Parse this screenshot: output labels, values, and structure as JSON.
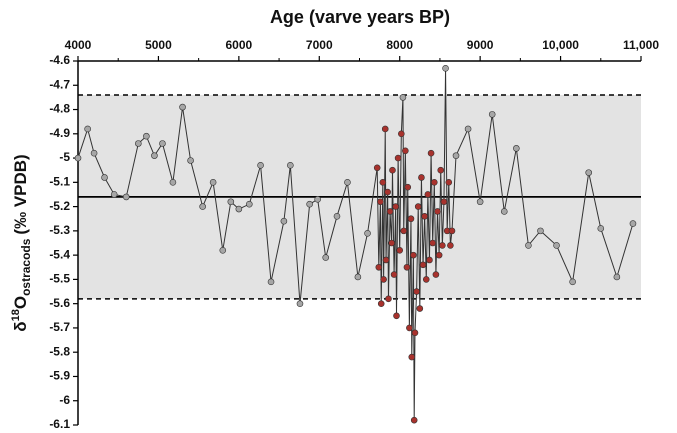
{
  "chart_data": {
    "type": "line",
    "xlabel": "Age (varve years BP)",
    "ylabel_prefix": "δ",
    "ylabel_sup": "18",
    "ylabel_main": "O",
    "ylabel_sub": "ostracods",
    "ylabel_suffix": "(‰ VPDB)",
    "xlim": [
      4000,
      11000
    ],
    "xticks": [
      4000,
      5000,
      6000,
      7000,
      8000,
      9000,
      {
        "value": 10000,
        "label": "10,000"
      },
      {
        "value": 11000,
        "label": "11,000"
      }
    ],
    "ylim": [
      -6.1,
      -4.6
    ],
    "yticks": [
      -4.6,
      -4.7,
      -4.8,
      -4.9,
      -5.0,
      -5.1,
      -5.2,
      -5.3,
      -5.4,
      -5.5,
      -5.6,
      -5.7,
      -5.8,
      -5.9,
      -6.0,
      -6.1
    ],
    "band": [
      -4.74,
      -5.58
    ],
    "band_color": "#e3e3e3",
    "mean_line": -5.16,
    "line_color": "#333333",
    "palette": [
      "#a6a6a6",
      "#a8322d"
    ],
    "series": [
      {
        "x": [
          4000,
          4120,
          4200,
          4330,
          4450,
          4600,
          4750,
          4850,
          4950,
          5050,
          5180,
          5300,
          5400,
          5550,
          5680,
          5800,
          5900,
          6000,
          6130,
          6270,
          6400,
          6560,
          6640,
          6760,
          6880,
          6980,
          7080,
          7220,
          7350,
          7480,
          7600,
          7720,
          7740,
          7760,
          7770,
          7790,
          7800,
          7820,
          7830,
          7850,
          7860,
          7880,
          7900,
          7910,
          7930,
          7950,
          7960,
          7980,
          8000,
          8020,
          8040,
          8050,
          8070,
          8090,
          8100,
          8120,
          8140,
          8150,
          8170,
          8180,
          8190,
          8210,
          8230,
          8250,
          8270,
          8290,
          8310,
          8330,
          8350,
          8370,
          8390,
          8410,
          8430,
          8450,
          8470,
          8490,
          8510,
          8530,
          8550,
          8570,
          8590,
          8610,
          8630,
          8650,
          8700,
          8850,
          9000,
          9150,
          9300,
          9450,
          9600,
          9750,
          9950,
          10150,
          10350,
          10500,
          10700,
          10900
        ],
        "values": [
          -5.0,
          -4.88,
          -4.98,
          -5.08,
          -5.15,
          -5.16,
          -4.94,
          -4.91,
          -4.99,
          -4.94,
          -5.1,
          -4.79,
          -5.01,
          -5.2,
          -5.1,
          -5.38,
          -5.18,
          -5.21,
          -5.19,
          -5.03,
          -5.51,
          -5.26,
          -5.03,
          -5.6,
          -5.19,
          -5.17,
          -5.41,
          -5.24,
          -5.1,
          -5.49,
          -5.31,
          -5.04,
          -5.45,
          -5.18,
          -5.6,
          -5.1,
          -5.5,
          -4.88,
          -5.42,
          -5.14,
          -5.58,
          -5.22,
          -5.35,
          -5.05,
          -5.48,
          -5.2,
          -5.65,
          -5.0,
          -5.38,
          -4.9,
          -4.75,
          -5.3,
          -4.97,
          -5.45,
          -5.12,
          -5.7,
          -5.25,
          -5.82,
          -5.4,
          -6.08,
          -5.72,
          -5.55,
          -5.2,
          -5.62,
          -5.08,
          -5.44,
          -5.24,
          -5.5,
          -5.15,
          -5.42,
          -4.98,
          -5.35,
          -5.1,
          -5.48,
          -5.22,
          -5.4,
          -5.05,
          -5.36,
          -5.18,
          -4.63,
          -5.3,
          -5.1,
          -5.36,
          -5.3,
          -4.99,
          -4.88,
          -5.18,
          -4.82,
          -5.22,
          -4.96,
          -5.36,
          -5.3,
          -5.36,
          -5.51,
          -5.06,
          -5.29,
          -5.49,
          -5.27
        ],
        "color_index": [
          0,
          0,
          0,
          0,
          0,
          0,
          0,
          0,
          0,
          0,
          0,
          0,
          0,
          0,
          0,
          0,
          0,
          0,
          0,
          0,
          0,
          0,
          0,
          0,
          0,
          0,
          0,
          0,
          0,
          0,
          0,
          1,
          1,
          1,
          1,
          1,
          1,
          1,
          1,
          1,
          1,
          1,
          1,
          1,
          1,
          1,
          1,
          1,
          1,
          1,
          0,
          1,
          1,
          1,
          1,
          1,
          1,
          1,
          1,
          1,
          1,
          1,
          1,
          1,
          1,
          1,
          1,
          1,
          1,
          1,
          1,
          1,
          1,
          1,
          1,
          1,
          1,
          1,
          1,
          0,
          1,
          1,
          1,
          1,
          0,
          0,
          0,
          0,
          0,
          0,
          0,
          0,
          0,
          0,
          0,
          0,
          0,
          0
        ]
      }
    ]
  }
}
